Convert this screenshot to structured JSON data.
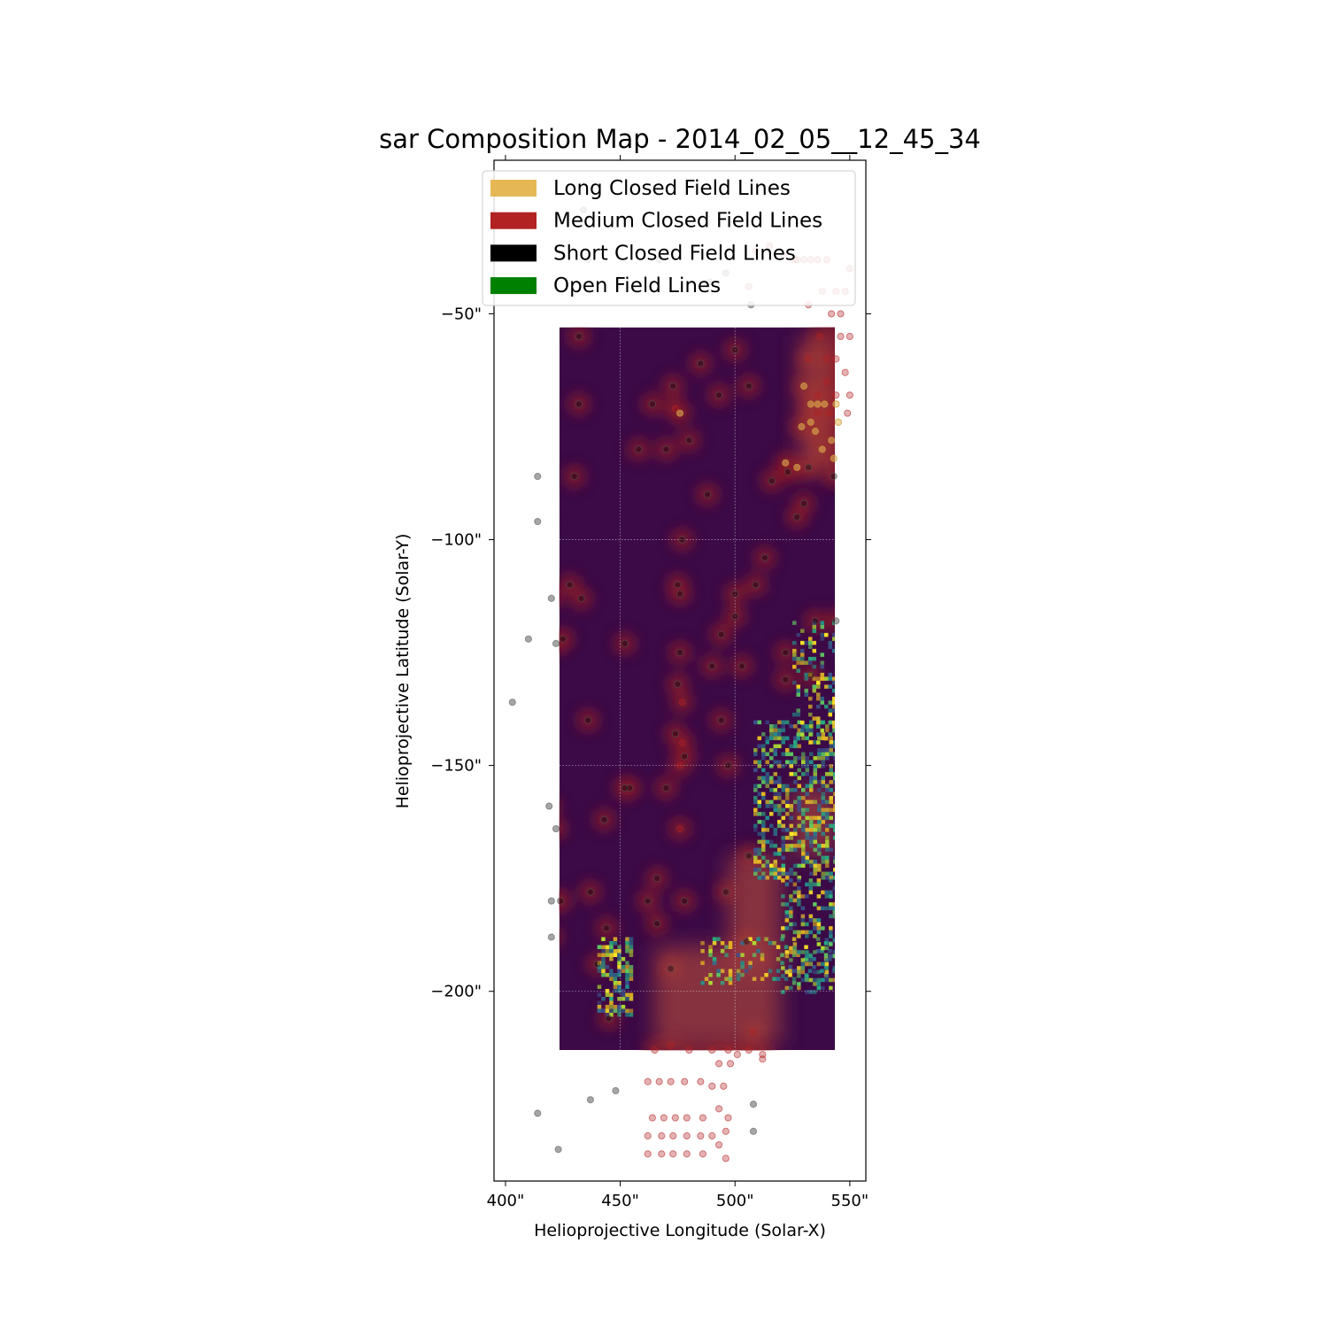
{
  "chart_data": {
    "type": "heatmap",
    "title": "sar Composition Map - 2014_02_05__12_45_34",
    "xlabel": "Helioprojective Longitude (Solar-X)",
    "ylabel": "Helioprojective Latitude (Solar-Y)",
    "xlim": [
      395,
      557
    ],
    "ylim": [
      -242,
      -16
    ],
    "x_ticks": [
      {
        "value": 400,
        "label": "400\""
      },
      {
        "value": 450,
        "label": "450\""
      },
      {
        "value": 500,
        "label": "500\""
      },
      {
        "value": 550,
        "label": "550\""
      }
    ],
    "y_ticks": [
      {
        "value": -50,
        "label": "−50\""
      },
      {
        "value": -100,
        "label": "−100\""
      },
      {
        "value": -150,
        "label": "−150\""
      },
      {
        "value": -200,
        "label": "−200\""
      }
    ],
    "grid": true,
    "legend_position": "top-right",
    "legend": [
      {
        "label": "Long Closed Field Lines",
        "color": "#e6b855"
      },
      {
        "label": "Medium Closed Field Lines",
        "color": "#b22222"
      },
      {
        "label": "Short Closed Field Lines",
        "color": "#000000"
      },
      {
        "label": "Open Field Lines",
        "color": "#008000"
      }
    ],
    "image_extent": {
      "x": [
        423.5,
        543.5
      ],
      "y": [
        -213,
        -53
      ]
    },
    "colormap": "viridis",
    "background_color": "#3b0a47",
    "glow_color": "#8b1a2a",
    "hot_regions": [
      {
        "x": [
          440,
          455
        ],
        "y": [
          -205,
          -188
        ],
        "density": 0.6
      },
      {
        "x": [
          508,
          543
        ],
        "y": [
          -175,
          -140
        ],
        "density": 0.5
      },
      {
        "x": [
          525,
          543
        ],
        "y": [
          -145,
          -118
        ],
        "density": 0.35
      },
      {
        "x": [
          485,
          543
        ],
        "y": [
          -198,
          -188
        ],
        "density": 0.25
      },
      {
        "x": [
          520,
          543
        ],
        "y": [
          -200,
          -175
        ],
        "density": 0.35
      }
    ],
    "warm_patches": [
      {
        "x": [
          465,
          520
        ],
        "y": [
          -212,
          -190
        ]
      },
      {
        "x": [
          497,
          520
        ],
        "y": [
          -195,
          -170
        ]
      },
      {
        "x": [
          528,
          543
        ],
        "y": [
          -85,
          -55
        ]
      },
      {
        "x": [
          525,
          543
        ],
        "y": [
          -170,
          -155
        ]
      }
    ],
    "points": {
      "short": [
        [
          434,
          -27
        ],
        [
          436,
          -38
        ],
        [
          414,
          -86
        ],
        [
          414,
          -96
        ],
        [
          420,
          -113
        ],
        [
          410,
          -122
        ],
        [
          403,
          -136
        ],
        [
          422,
          -123
        ],
        [
          419,
          -159
        ],
        [
          422,
          -164
        ],
        [
          420,
          -180
        ],
        [
          424,
          -180
        ],
        [
          420,
          -188
        ],
        [
          437,
          -224
        ],
        [
          448,
          -222
        ],
        [
          414,
          -227
        ],
        [
          423,
          -235
        ],
        [
          508,
          -225
        ],
        [
          508,
          -231
        ],
        [
          543,
          -86
        ],
        [
          544,
          -118
        ],
        [
          489,
          -43
        ],
        [
          507,
          -48
        ],
        [
          496,
          -41
        ],
        [
          467,
          -38
        ],
        [
          485,
          -61
        ],
        [
          470,
          -80
        ],
        [
          473,
          -66
        ],
        [
          480,
          -78
        ],
        [
          493,
          -68
        ],
        [
          500,
          -58
        ],
        [
          506,
          -66
        ],
        [
          488,
          -90
        ],
        [
          464,
          -70
        ],
        [
          458,
          -80
        ],
        [
          432,
          -55
        ],
        [
          432,
          -70
        ],
        [
          430,
          -86
        ],
        [
          428,
          -110
        ],
        [
          433,
          -113
        ],
        [
          425,
          -122
        ],
        [
          452,
          -123
        ],
        [
          436,
          -140
        ],
        [
          454,
          -155
        ],
        [
          443,
          -162
        ],
        [
          437,
          -178
        ],
        [
          444,
          -186
        ],
        [
          452,
          -155
        ],
        [
          470,
          -155
        ],
        [
          466,
          -175
        ],
        [
          478,
          -180
        ],
        [
          472,
          -195
        ],
        [
          497,
          -150
        ],
        [
          494,
          -140
        ],
        [
          506,
          -170
        ],
        [
          496,
          -178
        ],
        [
          477,
          -100
        ],
        [
          475,
          -110
        ],
        [
          476,
          -112
        ],
        [
          476,
          -125
        ],
        [
          475,
          -132
        ],
        [
          474,
          -143
        ],
        [
          478,
          -148
        ],
        [
          494,
          -121
        ],
        [
          490,
          -128
        ],
        [
          500,
          -117
        ],
        [
          503,
          -128
        ],
        [
          500,
          -112
        ],
        [
          513,
          -104
        ],
        [
          509,
          -110
        ],
        [
          523,
          -85
        ],
        [
          530,
          -92
        ],
        [
          527,
          -95
        ],
        [
          522,
          -125
        ],
        [
          535,
          -118
        ],
        [
          533,
          -130
        ],
        [
          522,
          -131
        ],
        [
          516,
          -87
        ],
        [
          532,
          -84
        ],
        [
          505,
          -189
        ],
        [
          466,
          -185
        ],
        [
          462,
          -180
        ],
        [
          440,
          -194
        ],
        [
          445,
          -206
        ]
      ],
      "medium": [
        [
          530,
          -38
        ],
        [
          533,
          -38
        ],
        [
          536,
          -38
        ],
        [
          540,
          -38
        ],
        [
          526,
          -38
        ],
        [
          550,
          -40
        ],
        [
          548,
          -45
        ],
        [
          544,
          -45
        ],
        [
          538,
          -45
        ],
        [
          532,
          -48
        ],
        [
          546,
          -50
        ],
        [
          542,
          -50
        ],
        [
          550,
          -55
        ],
        [
          546,
          -55
        ],
        [
          537,
          -55
        ],
        [
          532,
          -60
        ],
        [
          540,
          -60
        ],
        [
          544,
          -60
        ],
        [
          548,
          -63
        ],
        [
          540,
          -65
        ],
        [
          536,
          -68
        ],
        [
          544,
          -68
        ],
        [
          550,
          -68
        ],
        [
          549,
          -72
        ],
        [
          536,
          -72
        ],
        [
          541,
          -72
        ],
        [
          462,
          -220
        ],
        [
          467,
          -220
        ],
        [
          472,
          -220
        ],
        [
          478,
          -220
        ],
        [
          485,
          -220
        ],
        [
          490,
          -221
        ],
        [
          495,
          -221
        ],
        [
          464,
          -228
        ],
        [
          469,
          -228
        ],
        [
          474,
          -228
        ],
        [
          479,
          -228
        ],
        [
          486,
          -228
        ],
        [
          493,
          -226
        ],
        [
          497,
          -228
        ],
        [
          462,
          -232
        ],
        [
          468,
          -232
        ],
        [
          473,
          -232
        ],
        [
          479,
          -232
        ],
        [
          485,
          -232
        ],
        [
          490,
          -232
        ],
        [
          496,
          -231
        ],
        [
          462,
          -236
        ],
        [
          468,
          -236
        ],
        [
          473,
          -236
        ],
        [
          479,
          -236
        ],
        [
          486,
          -236
        ],
        [
          493,
          -234
        ],
        [
          496,
          -237
        ],
        [
          465,
          -213
        ],
        [
          472,
          -212
        ],
        [
          480,
          -213
        ],
        [
          490,
          -213
        ],
        [
          497,
          -213
        ],
        [
          506,
          -213
        ],
        [
          512,
          -214
        ],
        [
          498,
          -216
        ],
        [
          493,
          -216
        ],
        [
          474,
          -71
        ],
        [
          477,
          -136
        ],
        [
          477,
          -145
        ],
        [
          476,
          -150
        ],
        [
          476,
          -164
        ],
        [
          506,
          -44
        ],
        [
          509,
          -36
        ],
        [
          515,
          -35
        ],
        [
          521,
          -37
        ],
        [
          527,
          -38
        ],
        [
          512,
          -215
        ],
        [
          501,
          -214
        ],
        [
          508,
          -209
        ]
      ],
      "long": [
        [
          530,
          -66
        ],
        [
          533,
          -70
        ],
        [
          536,
          -70
        ],
        [
          539,
          -70
        ],
        [
          544,
          -70
        ],
        [
          542,
          -78
        ],
        [
          545,
          -74
        ],
        [
          538,
          -80
        ],
        [
          543,
          -82
        ],
        [
          533,
          -74
        ],
        [
          527,
          -84
        ],
        [
          535,
          -76
        ],
        [
          529,
          -75
        ],
        [
          522,
          -83
        ],
        [
          476,
          -72
        ]
      ]
    }
  }
}
